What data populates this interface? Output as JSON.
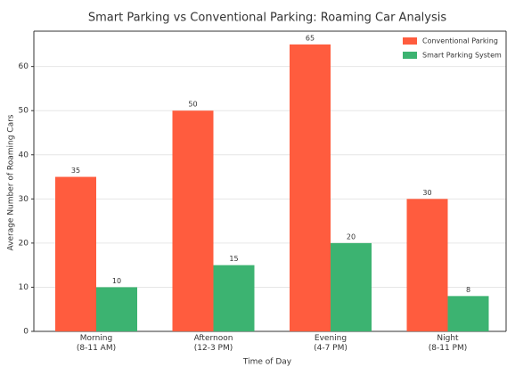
{
  "chart_data": {
    "type": "bar",
    "title": "Smart Parking vs Conventional Parking: Roaming Car Analysis",
    "x_label": "Time of Day",
    "y_label": "Average Number of Roaming Cars",
    "categories": [
      "Morning\n(8-11 AM)",
      "Afternoon\n(12-3 PM)",
      "Evening\n(4-7 PM)",
      "Night\n(8-11 PM)"
    ],
    "series": [
      {
        "name": "Conventional Parking",
        "color": "#ff5c3e",
        "values": [
          35,
          50,
          65,
          30
        ]
      },
      {
        "name": "Smart Parking System",
        "color": "#3cb371",
        "values": [
          10,
          15,
          20,
          8
        ]
      }
    ],
    "ylim": [
      0,
      68
    ],
    "yticks": [
      0,
      10,
      20,
      30,
      40,
      50,
      60
    ],
    "grid": true,
    "legend": "upper right"
  }
}
